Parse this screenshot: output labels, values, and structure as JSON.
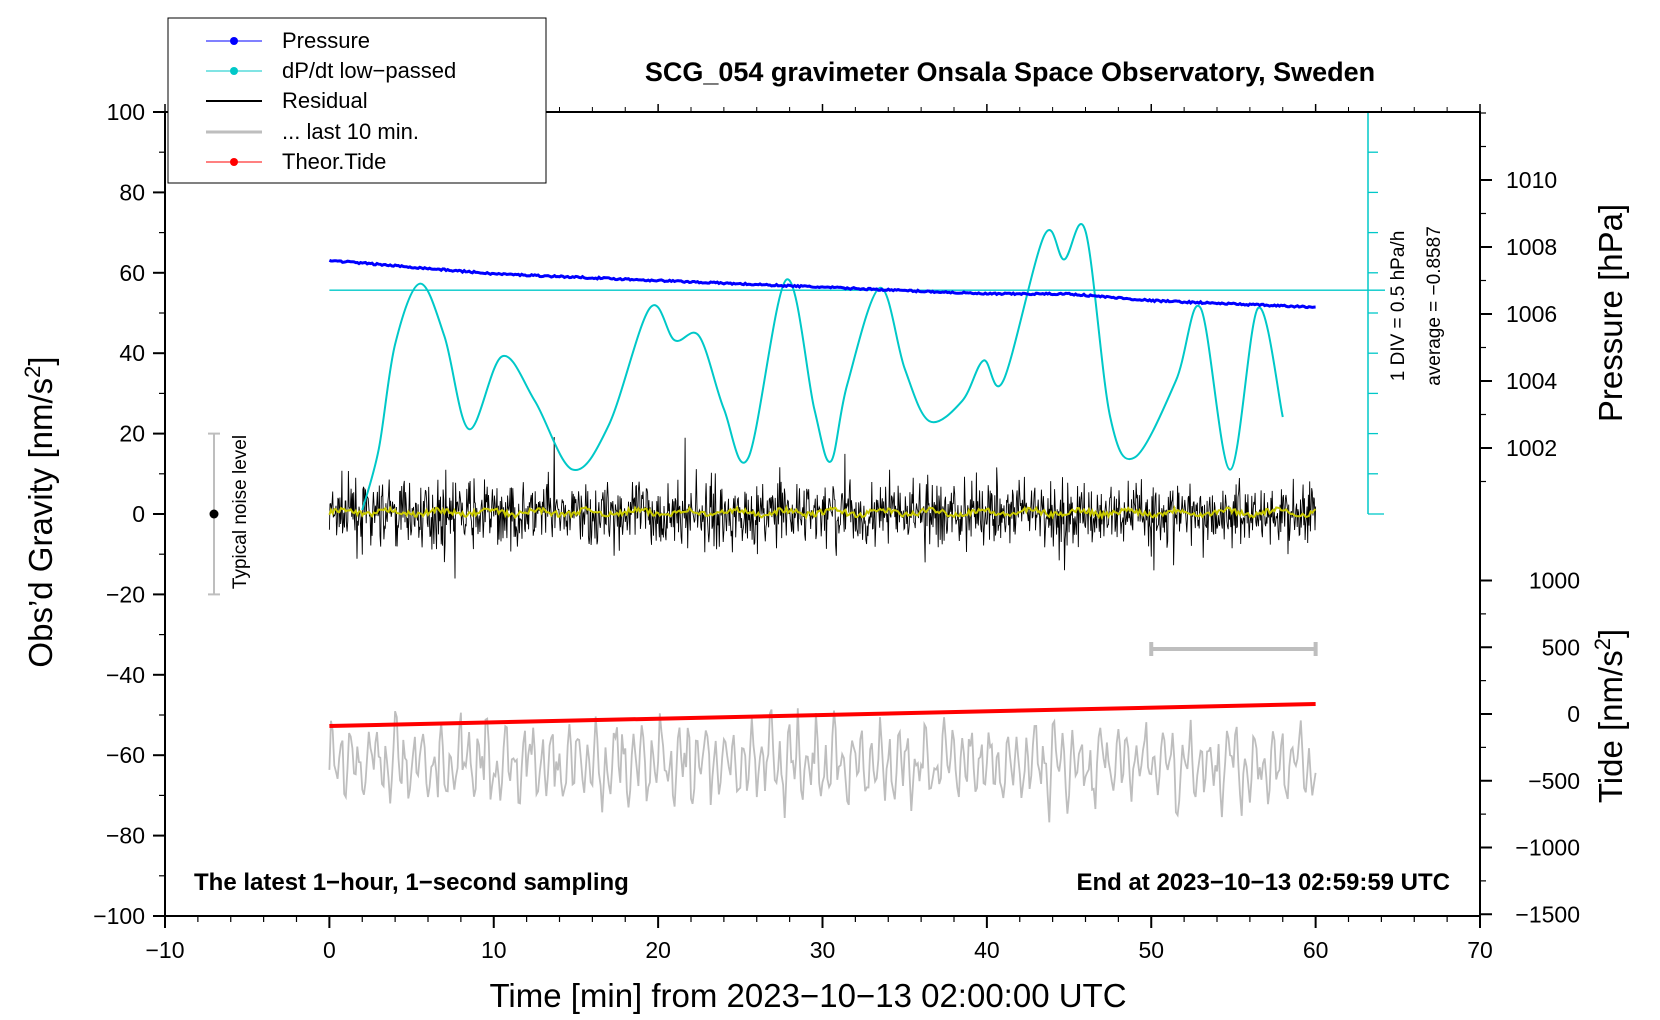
{
  "chart_data": {
    "type": "line",
    "title": "SCG_054 gravimeter Onsala Space Observatory, Sweden",
    "xlabel": "Time [min] from 2023−10−13 02:00:00 UTC",
    "ylabel_main": "Obs’d Gravity [nm/s",
    "ylabel_main_sup": "2",
    "ylabel_main_end": "]",
    "ylabel_pressure": "Pressure [hPa]",
    "ylabel_tide": "Tide [nm/s",
    "ylabel_tide_sup": "2",
    "ylabel_tide_end": "]",
    "xlim": [
      -10,
      70
    ],
    "ylim": [
      -100,
      100
    ],
    "x_ticks": [
      "−10",
      "0",
      "10",
      "20",
      "30",
      "40",
      "50",
      "60",
      "70"
    ],
    "y_ticks": [
      "100",
      "80",
      "60",
      "40",
      "20",
      "0",
      "−20",
      "−40",
      "−60",
      "−80",
      "−100"
    ],
    "pressure_ticks": [
      "1010",
      "1008",
      "1006",
      "1004",
      "1002"
    ],
    "pressure_range_hpa": [
      1000.3,
      1012.3
    ],
    "tide_ticks": [
      "1000",
      "500",
      "0",
      "−500",
      "−1000",
      "−1500"
    ],
    "tide_range_nms2": [
      -1500,
      1000
    ],
    "bottom_left_note": "The latest 1−hour, 1−second sampling",
    "bottom_right_note": "End at 2023−10−13 02:59:59 UTC",
    "noise_label": "Typical noise level",
    "noise_bar_range": [
      -20,
      20
    ],
    "dpdt_div_label": "1 DIV = 0.5 hPa/h",
    "dpdt_avg_label": "average = −0.8587",
    "legend": [
      {
        "label": "Pressure",
        "color": "#0000ff",
        "marker": true
      },
      {
        "label": "dP/dt low−passed",
        "color": "#00c8c8",
        "marker": true
      },
      {
        "label": "Residual",
        "color": "#000000",
        "marker": false
      },
      {
        "label": "... last 10 min.",
        "color": "#bebebe",
        "marker": false
      },
      {
        "label": "Theor.Tide",
        "color": "#ff0000",
        "marker": true
      }
    ],
    "series": [
      {
        "name": "Pressure",
        "unit": "hPa",
        "x": [
          0,
          5,
          10,
          15,
          20,
          25,
          30,
          35,
          40,
          45,
          50,
          55,
          60
        ],
        "values": [
          1007.6,
          1007.4,
          1007.2,
          1007.1,
          1007.0,
          1006.9,
          1006.8,
          1006.7,
          1006.6,
          1006.6,
          1006.4,
          1006.3,
          1006.2
        ]
      },
      {
        "name": "dP/dt low−passed",
        "unit": "hPa/h",
        "x": [
          2,
          3,
          4,
          5.5,
          7,
          8.5,
          10.5,
          12.5,
          14.8,
          17,
          19.5,
          21,
          22.5,
          24,
          25.5,
          27.8,
          29.5,
          30.5,
          31.5,
          33.5,
          35,
          36.5,
          38.5,
          39.8,
          41,
          43.5,
          44.7,
          46,
          47.5,
          49,
          51.5,
          53,
          54.8,
          56.5,
          58
        ],
        "values": [
          0.05,
          0.8,
          2.1,
          2.85,
          2.2,
          1.05,
          1.95,
          1.4,
          0.55,
          1.1,
          2.55,
          2.15,
          2.2,
          1.3,
          0.7,
          2.9,
          1.3,
          0.65,
          1.6,
          2.8,
          1.8,
          1.15,
          1.4,
          1.9,
          1.65,
          3.45,
          3.15,
          3.5,
          1.2,
          0.7,
          1.65,
          2.55,
          0.55,
          2.55,
          1.2
        ]
      },
      {
        "name": "Residual",
        "unit": "nm/s2",
        "x": [
          0,
          60
        ],
        "values": [
          0.5,
          0.3
        ],
        "envelope": [
          -22,
          22
        ]
      },
      {
        "name": "... last 10 min.",
        "unit": "nm/s2",
        "x": [
          0,
          60
        ],
        "values": [
          -62,
          -62
        ],
        "envelope": [
          -82,
          -45
        ]
      },
      {
        "name": "Theor.Tide",
        "unit": "nm/s2",
        "x": [
          0,
          60
        ],
        "values": [
          -90,
          75
        ]
      }
    ],
    "colors": {
      "smoothed": "#c8c800",
      "grey": "#bebebe",
      "teal": "#00c8c8",
      "blue": "#0000ff",
      "red": "#ff0000"
    }
  }
}
